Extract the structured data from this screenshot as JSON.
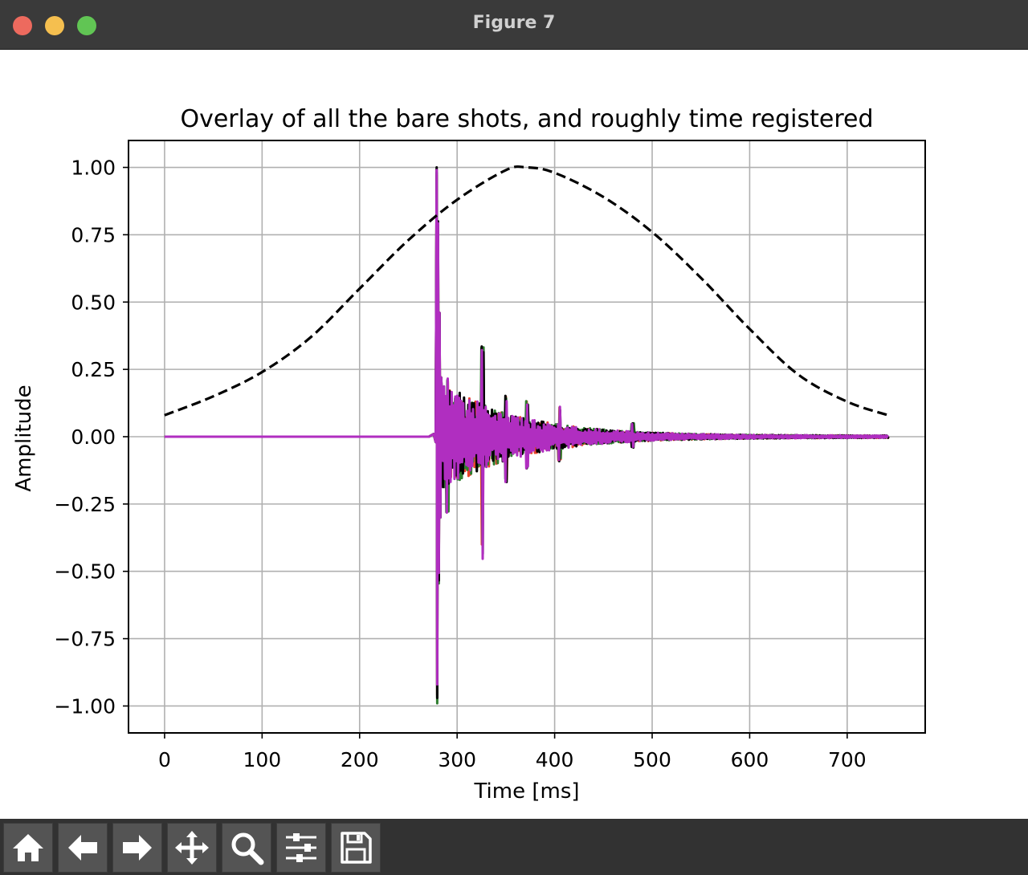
{
  "window": {
    "title": "Figure 7"
  },
  "toolbar": {
    "buttons": [
      {
        "name": "home-icon"
      },
      {
        "name": "back-arrow-icon"
      },
      {
        "name": "forward-arrow-icon"
      },
      {
        "name": "pan-move-icon"
      },
      {
        "name": "zoom-magnifier-icon"
      },
      {
        "name": "configure-subplots-icon"
      },
      {
        "name": "save-floppy-icon"
      }
    ]
  },
  "chart_data": {
    "type": "line",
    "title": "Overlay of all the bare shots, and roughly time registered",
    "xlabel": "Time [ms]",
    "ylabel": "Amplitude",
    "xlim": [
      -37,
      780
    ],
    "ylim": [
      -1.1,
      1.1
    ],
    "xticks": [
      0,
      100,
      200,
      300,
      400,
      500,
      600,
      700
    ],
    "xtick_labels": [
      "0",
      "100",
      "200",
      "300",
      "400",
      "500",
      "600",
      "700"
    ],
    "yticks": [
      1.0,
      0.75,
      0.5,
      0.25,
      0.0,
      -0.25,
      -0.5,
      -0.75,
      -1.0
    ],
    "ytick_labels": [
      "1.00",
      "0.75",
      "0.50",
      "0.25",
      "0.00",
      "−0.25",
      "−0.50",
      "−0.75",
      "−1.00"
    ],
    "grid": true,
    "window_curve": {
      "style": "dashed",
      "color": "#000000",
      "x": [
        0,
        50,
        100,
        150,
        200,
        250,
        300,
        350,
        371,
        400,
        450,
        500,
        550,
        600,
        650,
        700,
        742
      ],
      "y": [
        0.08,
        0.15,
        0.24,
        0.37,
        0.55,
        0.73,
        0.88,
        0.99,
        1.0,
        0.98,
        0.89,
        0.76,
        0.59,
        0.4,
        0.23,
        0.13,
        0.08
      ]
    },
    "shot_series": [
      {
        "color": "#e8432a",
        "peak_x": 279,
        "peak_max": 0.97,
        "peak_min": -0.96,
        "x_end": 742
      },
      {
        "color": "#2e7d2e",
        "peak_x": 279,
        "peak_max": 0.98,
        "peak_min": -0.99,
        "x_end": 742
      },
      {
        "color": "#000000",
        "peak_x": 279,
        "peak_max": 1.0,
        "peak_min": -0.97,
        "x_end": 742
      },
      {
        "color": "#b02ec0",
        "peak_x": 279,
        "peak_max": 0.99,
        "peak_min": -0.92,
        "x_end": 742
      }
    ]
  }
}
